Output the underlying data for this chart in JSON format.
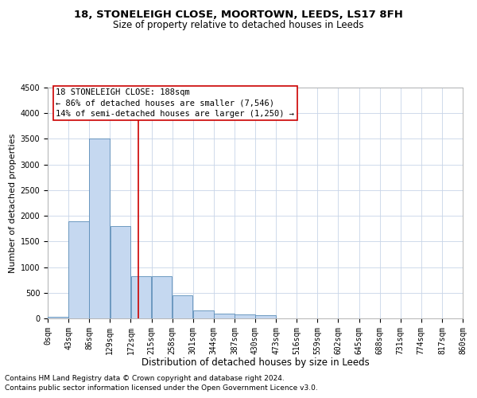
{
  "title": "18, STONELEIGH CLOSE, MOORTOWN, LEEDS, LS17 8FH",
  "subtitle": "Size of property relative to detached houses in Leeds",
  "xlabel": "Distribution of detached houses by size in Leeds",
  "ylabel": "Number of detached properties",
  "footnote1": "Contains HM Land Registry data © Crown copyright and database right 2024.",
  "footnote2": "Contains public sector information licensed under the Open Government Licence v3.0.",
  "annotation_title": "18 STONELEIGH CLOSE: 188sqm",
  "annotation_line1": "← 86% of detached houses are smaller (7,546)",
  "annotation_line2": "14% of semi-detached houses are larger (1,250) →",
  "bin_edges": [
    0,
    43,
    86,
    129,
    172,
    215,
    258,
    301,
    344,
    387,
    430,
    473,
    516,
    559,
    602,
    645,
    688,
    731,
    774,
    817,
    860
  ],
  "bar_heights": [
    30,
    1900,
    3500,
    1800,
    820,
    820,
    450,
    150,
    90,
    70,
    60,
    0,
    0,
    0,
    0,
    0,
    0,
    0,
    0,
    0
  ],
  "property_size": 188,
  "bar_color": "#c5d8f0",
  "bar_edge_color": "#5b8db8",
  "vline_color": "#cc0000",
  "ylim": [
    0,
    4500
  ],
  "yticks": [
    0,
    500,
    1000,
    1500,
    2000,
    2500,
    3000,
    3500,
    4000,
    4500
  ],
  "title_fontsize": 9.5,
  "subtitle_fontsize": 8.5,
  "xlabel_fontsize": 8.5,
  "ylabel_fontsize": 8,
  "tick_fontsize": 7,
  "annotation_fontsize": 7.5,
  "footnote_fontsize": 6.5
}
